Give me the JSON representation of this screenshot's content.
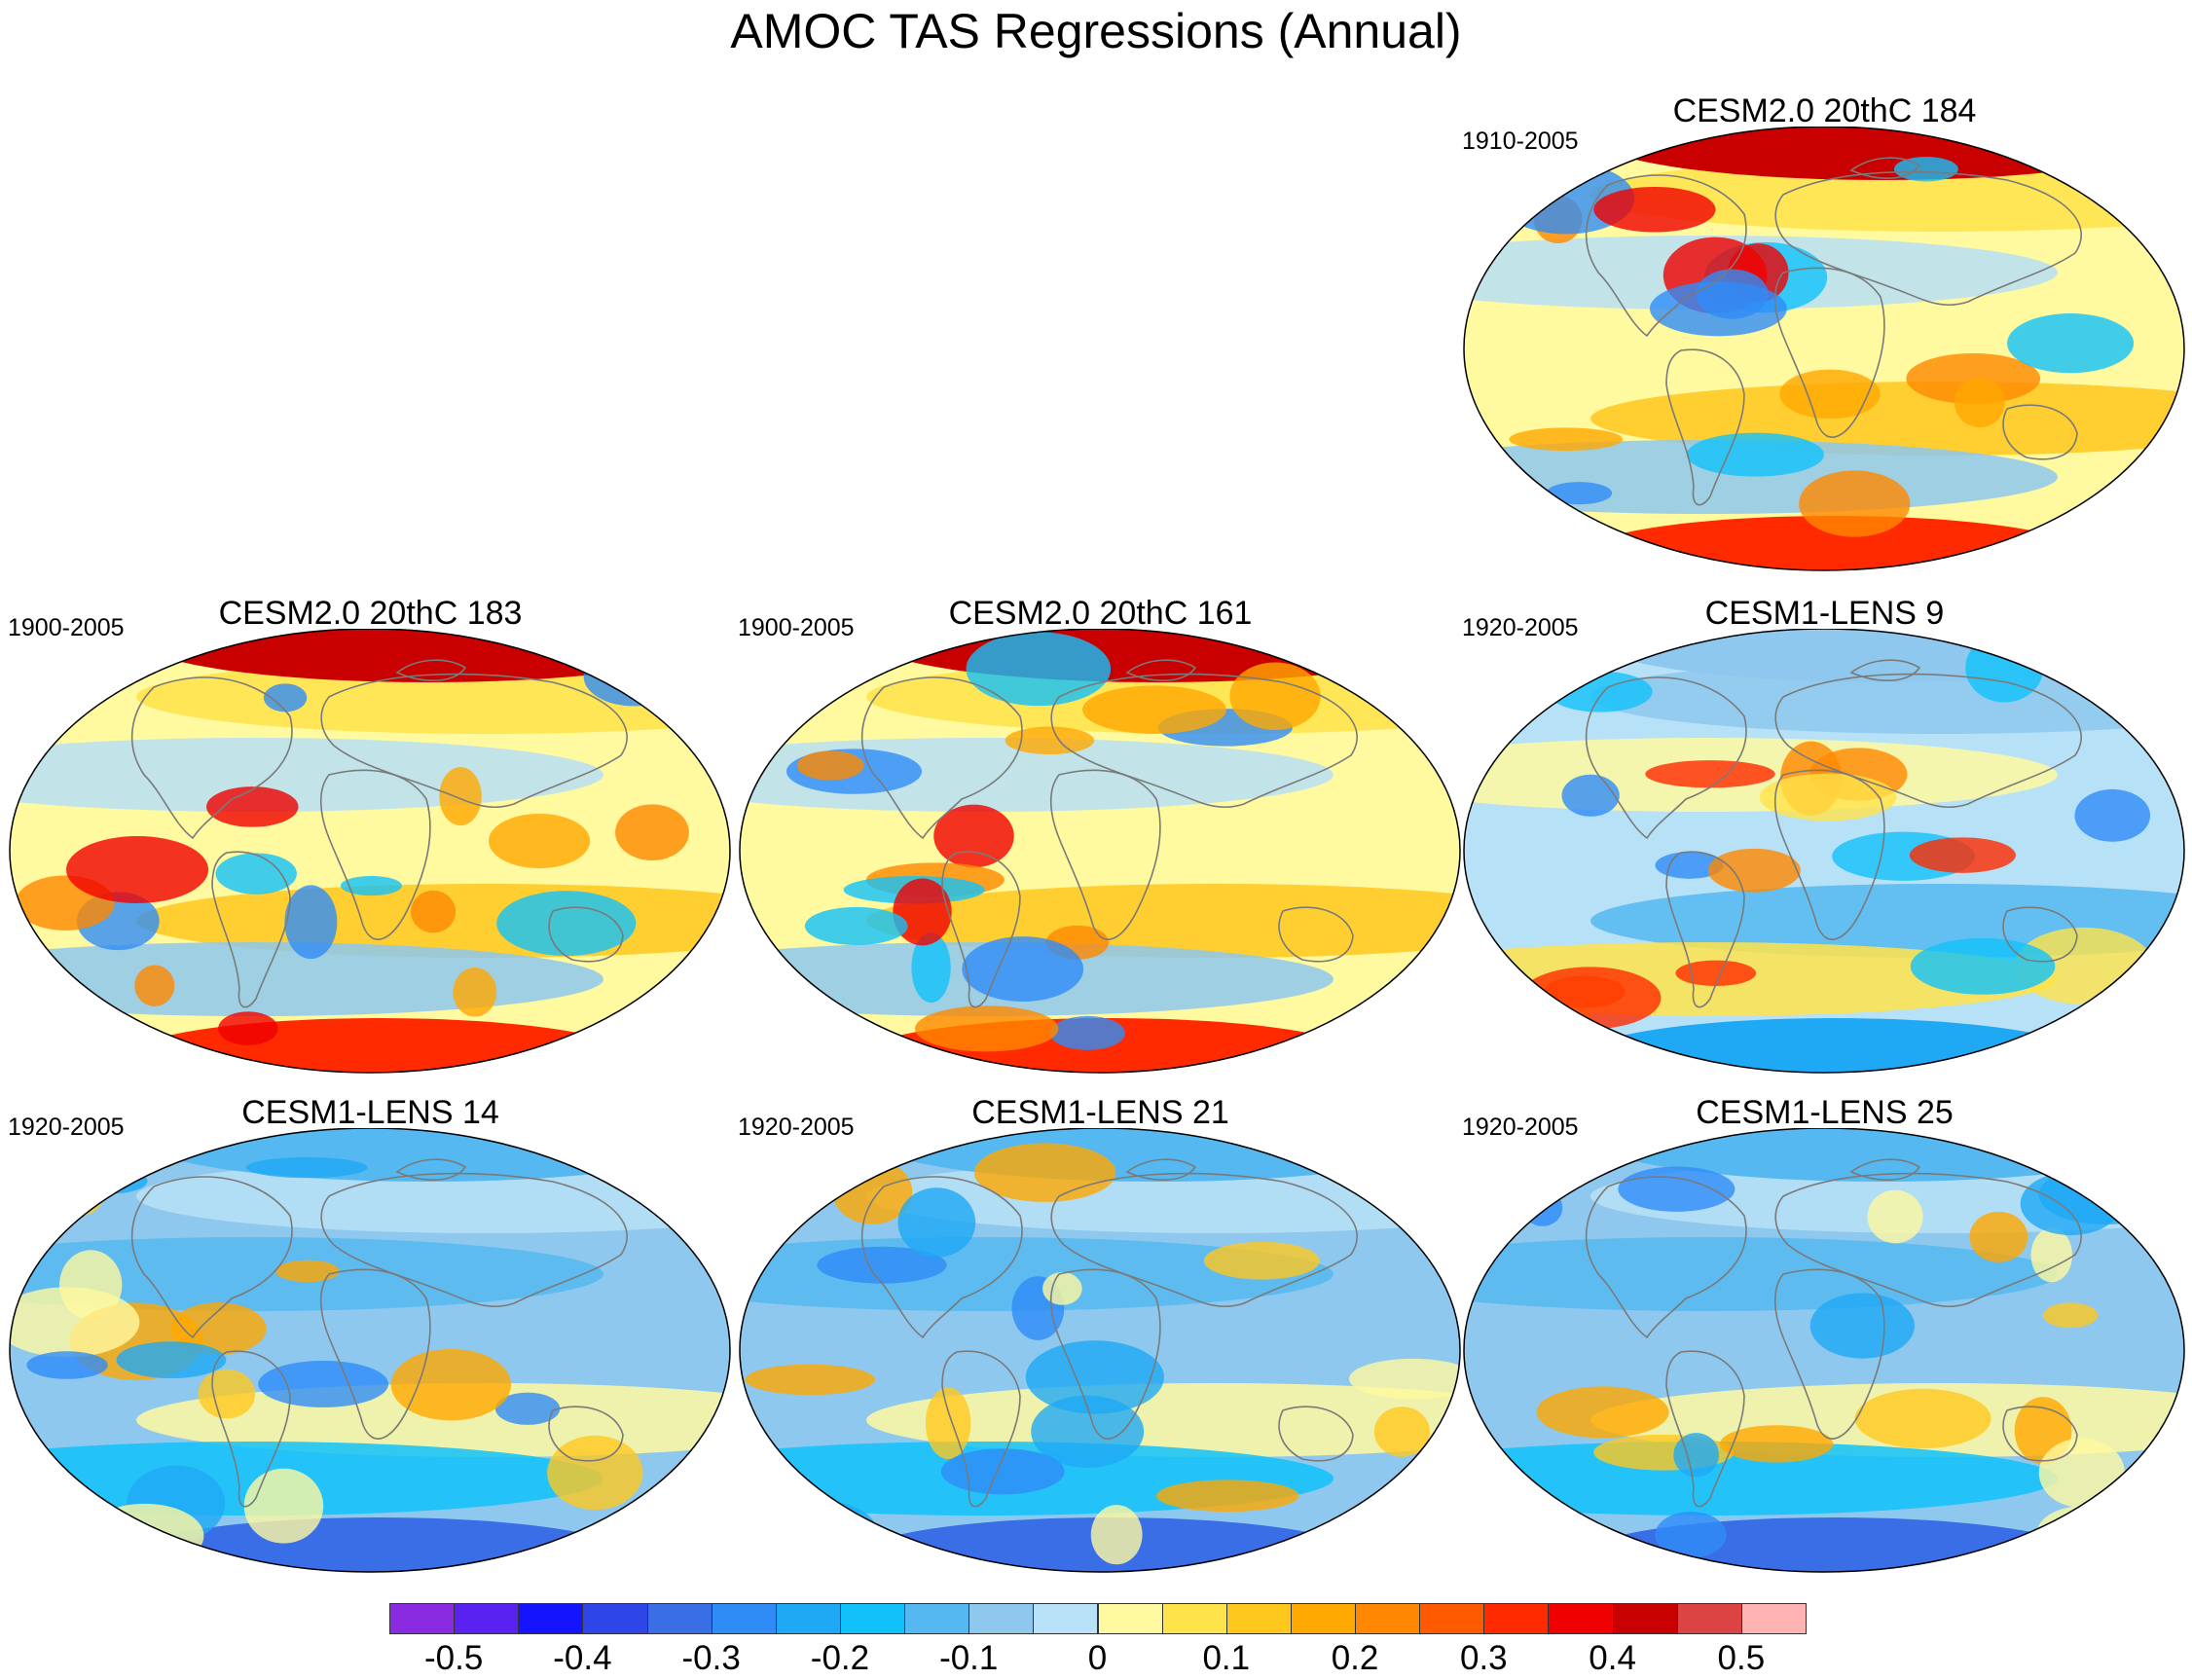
{
  "title": "AMOC TAS Regressions (Annual)",
  "colorbar": {
    "colors": [
      "#8a2be2",
      "#5a22f0",
      "#1414ff",
      "#2e46e8",
      "#3a6ee6",
      "#2f8cf7",
      "#1fa9f5",
      "#11c2fa",
      "#55b8f0",
      "#8ec8ee",
      "#b7e1f6",
      "#fff9a0",
      "#ffe34a",
      "#ffc81f",
      "#ffa800",
      "#ff8800",
      "#ff5a00",
      "#ff2a00",
      "#f00000",
      "#c80000",
      "#dc4444",
      "#ffb4b4"
    ],
    "labels": [
      "-0.5",
      "-0.4",
      "-0.3",
      "-0.2",
      "-0.1",
      "0",
      "0.1",
      "0.2",
      "0.3",
      "0.4",
      "0.5"
    ]
  },
  "panels": [
    {
      "title": "CESM2.0 20thC 184",
      "period": "1910-2005",
      "style": "warm"
    },
    {
      "title": "CESM2.0 20thC 183",
      "period": "1900-2005",
      "style": "warm"
    },
    {
      "title": "CESM2.0 20thC 161",
      "period": "1900-2005",
      "style": "warm"
    },
    {
      "title": "CESM1-LENS 9",
      "period": "1920-2005",
      "style": "mixed"
    },
    {
      "title": "CESM1-LENS 14",
      "period": "1920-2005",
      "style": "cool"
    },
    {
      "title": "CESM1-LENS 21",
      "period": "1920-2005",
      "style": "cool"
    },
    {
      "title": "CESM1-LENS 25",
      "period": "1920-2005",
      "style": "cool"
    }
  ]
}
